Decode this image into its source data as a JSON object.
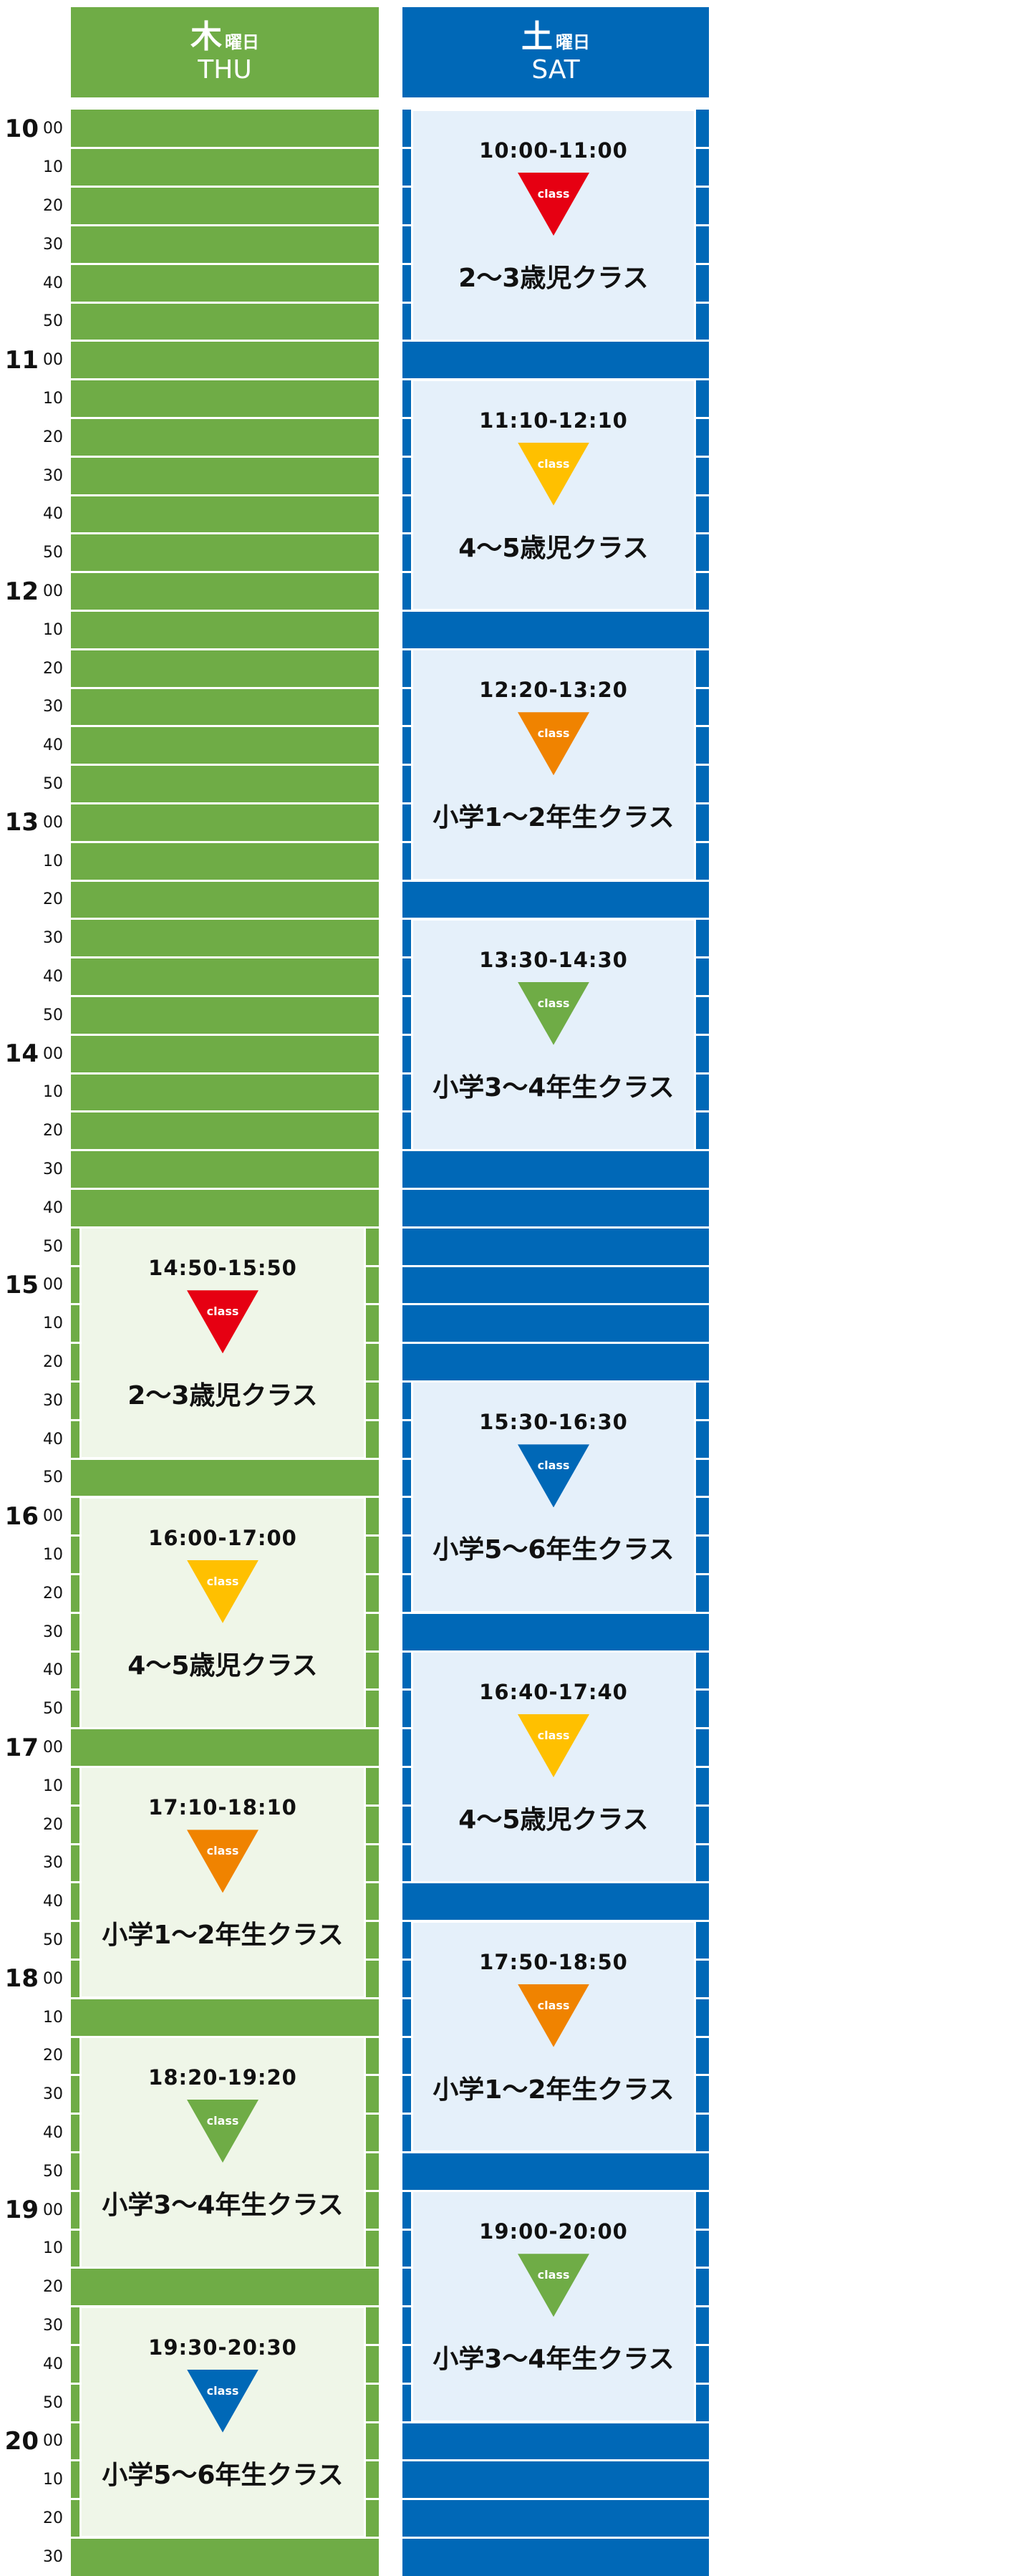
{
  "colors": {
    "thu_green": "#6fac46",
    "thu_card_bg": "#eff6e8",
    "sat_blue": "#0068b7",
    "sat_card_bg": "#e5f0fa",
    "red": "#e60012",
    "yellow": "#ffc000",
    "orange": "#f08300",
    "green": "#6fac46",
    "blue": "#0068b7"
  },
  "columns": {
    "thu": {
      "jp_main": "木",
      "jp_sub": "曜日",
      "en": "THU"
    },
    "sat": {
      "jp_main": "土",
      "jp_sub": "曜日",
      "en": "SAT"
    }
  },
  "schedule": {
    "start_time": "10:00",
    "end_time": "20:40",
    "slot_minutes": 10
  },
  "time_labels": [
    {
      "hour": "10",
      "min": "00"
    },
    {
      "hour": "",
      "min": "10"
    },
    {
      "hour": "",
      "min": "20"
    },
    {
      "hour": "",
      "min": "30"
    },
    {
      "hour": "",
      "min": "40"
    },
    {
      "hour": "",
      "min": "50"
    },
    {
      "hour": "11",
      "min": "00"
    },
    {
      "hour": "",
      "min": "10"
    },
    {
      "hour": "",
      "min": "20"
    },
    {
      "hour": "",
      "min": "30"
    },
    {
      "hour": "",
      "min": "40"
    },
    {
      "hour": "",
      "min": "50"
    },
    {
      "hour": "12",
      "min": "00"
    },
    {
      "hour": "",
      "min": "10"
    },
    {
      "hour": "",
      "min": "20"
    },
    {
      "hour": "",
      "min": "30"
    },
    {
      "hour": "",
      "min": "40"
    },
    {
      "hour": "",
      "min": "50"
    },
    {
      "hour": "13",
      "min": "00"
    },
    {
      "hour": "",
      "min": "10"
    },
    {
      "hour": "",
      "min": "20"
    },
    {
      "hour": "",
      "min": "30"
    },
    {
      "hour": "",
      "min": "40"
    },
    {
      "hour": "",
      "min": "50"
    },
    {
      "hour": "14",
      "min": "00"
    },
    {
      "hour": "",
      "min": "10"
    },
    {
      "hour": "",
      "min": "20"
    },
    {
      "hour": "",
      "min": "30"
    },
    {
      "hour": "",
      "min": "40"
    },
    {
      "hour": "",
      "min": "50"
    },
    {
      "hour": "15",
      "min": "00"
    },
    {
      "hour": "",
      "min": "10"
    },
    {
      "hour": "",
      "min": "20"
    },
    {
      "hour": "",
      "min": "30"
    },
    {
      "hour": "",
      "min": "40"
    },
    {
      "hour": "",
      "min": "50"
    },
    {
      "hour": "16",
      "min": "00"
    },
    {
      "hour": "",
      "min": "10"
    },
    {
      "hour": "",
      "min": "20"
    },
    {
      "hour": "",
      "min": "30"
    },
    {
      "hour": "",
      "min": "40"
    },
    {
      "hour": "",
      "min": "50"
    },
    {
      "hour": "17",
      "min": "00"
    },
    {
      "hour": "",
      "min": "10"
    },
    {
      "hour": "",
      "min": "20"
    },
    {
      "hour": "",
      "min": "30"
    },
    {
      "hour": "",
      "min": "40"
    },
    {
      "hour": "",
      "min": "50"
    },
    {
      "hour": "18",
      "min": "00"
    },
    {
      "hour": "",
      "min": "10"
    },
    {
      "hour": "",
      "min": "20"
    },
    {
      "hour": "",
      "min": "30"
    },
    {
      "hour": "",
      "min": "40"
    },
    {
      "hour": "",
      "min": "50"
    },
    {
      "hour": "19",
      "min": "00"
    },
    {
      "hour": "",
      "min": "10"
    },
    {
      "hour": "",
      "min": "20"
    },
    {
      "hour": "",
      "min": "30"
    },
    {
      "hour": "",
      "min": "40"
    },
    {
      "hour": "",
      "min": "50"
    },
    {
      "hour": "20",
      "min": "00"
    },
    {
      "hour": "",
      "min": "10"
    },
    {
      "hour": "",
      "min": "20"
    },
    {
      "hour": "",
      "min": "30"
    }
  ],
  "badge_label": "class",
  "classes": {
    "thu": [
      {
        "time": "14:50-15:50",
        "name": "2～3歳児クラス",
        "color": "red",
        "start": "14:50",
        "end": "15:50"
      },
      {
        "time": "16:00-17:00",
        "name": "4～5歳児クラス",
        "color": "yellow",
        "start": "16:00",
        "end": "17:00"
      },
      {
        "time": "17:10-18:10",
        "name": "小学1～2年生クラス",
        "color": "orange",
        "start": "17:10",
        "end": "18:10"
      },
      {
        "time": "18:20-19:20",
        "name": "小学3～4年生クラス",
        "color": "green",
        "start": "18:20",
        "end": "19:20"
      },
      {
        "time": "19:30-20:30",
        "name": "小学5～6年生クラス",
        "color": "blue",
        "start": "19:30",
        "end": "20:30"
      }
    ],
    "sat": [
      {
        "time": "10:00-11:00",
        "name": "2～3歳児クラス",
        "color": "red",
        "start": "10:00",
        "end": "11:00"
      },
      {
        "time": "11:10-12:10",
        "name": "4～5歳児クラス",
        "color": "yellow",
        "start": "11:10",
        "end": "12:10"
      },
      {
        "time": "12:20-13:20",
        "name": "小学1～2年生クラス",
        "color": "orange",
        "start": "12:20",
        "end": "13:20"
      },
      {
        "time": "13:30-14:30",
        "name": "小学3～4年生クラス",
        "color": "green",
        "start": "13:30",
        "end": "14:30"
      },
      {
        "time": "15:30-16:30",
        "name": "小学5～6年生クラス",
        "color": "blue",
        "start": "15:30",
        "end": "16:30"
      },
      {
        "time": "16:40-17:40",
        "name": "4～5歳児クラス",
        "color": "yellow",
        "start": "16:40",
        "end": "17:40"
      },
      {
        "time": "17:50-18:50",
        "name": "小学1～2年生クラス",
        "color": "orange",
        "start": "17:50",
        "end": "18:50"
      },
      {
        "time": "19:00-20:00",
        "name": "小学3～4年生クラス",
        "color": "green",
        "start": "19:00",
        "end": "20:00"
      }
    ]
  }
}
